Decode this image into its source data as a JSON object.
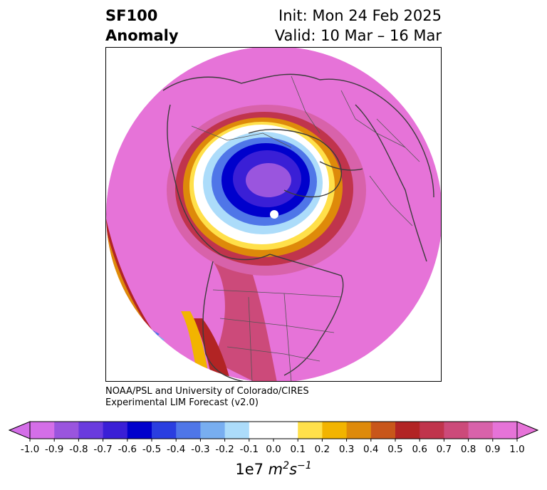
{
  "header": {
    "title_line1": "SF100",
    "title_line2": "Anomaly",
    "init": "Init: Mon 24 Feb 2025",
    "valid": "Valid: 10 Mar – 16 Mar"
  },
  "credit": {
    "line1": "NOAA/PSL and University of Colorado/CIRES",
    "line2": "Experimental LIM Forecast (v2.0)"
  },
  "colorbar": {
    "ticks": [
      "-1.0",
      "-0.9",
      "-0.8",
      "-0.7",
      "-0.6",
      "-0.5",
      "-0.4",
      "-0.3",
      "-0.2",
      "-0.1",
      "0.0",
      "0.1",
      "0.2",
      "0.3",
      "0.4",
      "0.5",
      "0.6",
      "0.7",
      "0.8",
      "0.9",
      "1.0"
    ],
    "colors": [
      "#d46ee8",
      "#9a55de",
      "#6a3bde",
      "#3a1fd6",
      "#0000cc",
      "#2a3ee0",
      "#4f76e8",
      "#78aef0",
      "#acdcfa",
      "#ffffff",
      "#ffffff",
      "#ffe04a",
      "#f2b400",
      "#de8a0a",
      "#c8561a",
      "#b22424",
      "#c0344c",
      "#cc4a7a",
      "#d862aa",
      "#e673d8"
    ],
    "low_extend": "#d46ee8",
    "high_extend": "#e673d8",
    "units_base": "1e7 ",
    "units_m": "m",
    "units_m_exp": "2",
    "units_s": "s",
    "units_s_exp": "−1"
  },
  "map": {
    "background_anomaly_color": "#e673d8",
    "negative_center_color": "#3a1fd6"
  }
}
